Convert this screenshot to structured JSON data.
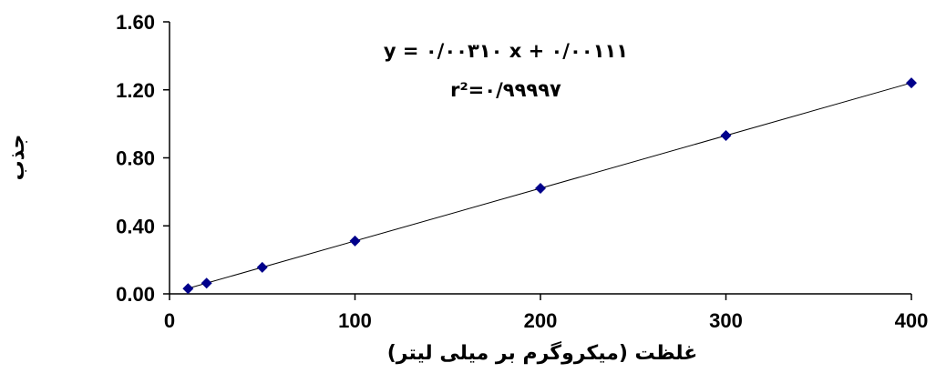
{
  "chart_data": {
    "type": "scatter",
    "title": "",
    "xlabel": "غلظت (میکروگرم بر میلی لیتر)",
    "ylabel": "جذب",
    "xlim": [
      0,
      400
    ],
    "ylim": [
      0,
      1.6
    ],
    "x_ticks": [
      "0",
      "100",
      "200",
      "300",
      "400"
    ],
    "y_ticks": [
      "0.00",
      "0.40",
      "0.80",
      "1.20",
      "1.60"
    ],
    "grid": false,
    "legend": "none",
    "marker_color": "#00008B",
    "line_color": "#000000",
    "series": [
      {
        "x": [
          10,
          20,
          50,
          100,
          200,
          300,
          400
        ],
        "y": [
          0.031,
          0.063,
          0.156,
          0.311,
          0.621,
          0.931,
          1.241
        ]
      }
    ],
    "trendline": {
      "slope": 0.0031,
      "intercept": 0.00111,
      "x_range": [
        10,
        400
      ]
    },
    "annotations": {
      "equation": "y = ۰/۰۰۳۱۰ x +  ۰/۰۰۱۱۱",
      "r_squared": "r²=۰/۹۹۹۹۷"
    }
  }
}
